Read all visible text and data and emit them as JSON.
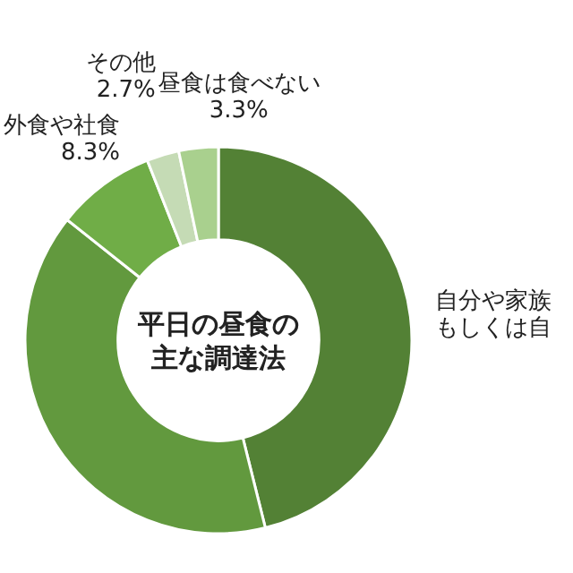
{
  "chart_data": {
    "type": "donut",
    "title": "平日の昼食の主な調達法",
    "categories": [
      "自分や家族もしくは自",
      null,
      "外食や社食",
      "その他",
      "昼食は食べない"
    ],
    "values": [
      46.1,
      39.6,
      8.3,
      2.7,
      3.3
    ],
    "value_labels": [
      null,
      null,
      "8.3%",
      "2.7%",
      "3.3%"
    ],
    "colors": [
      "#538135",
      "#62993e",
      "#70ad47",
      "#c5dbb5",
      "#a9d08e"
    ]
  }
}
